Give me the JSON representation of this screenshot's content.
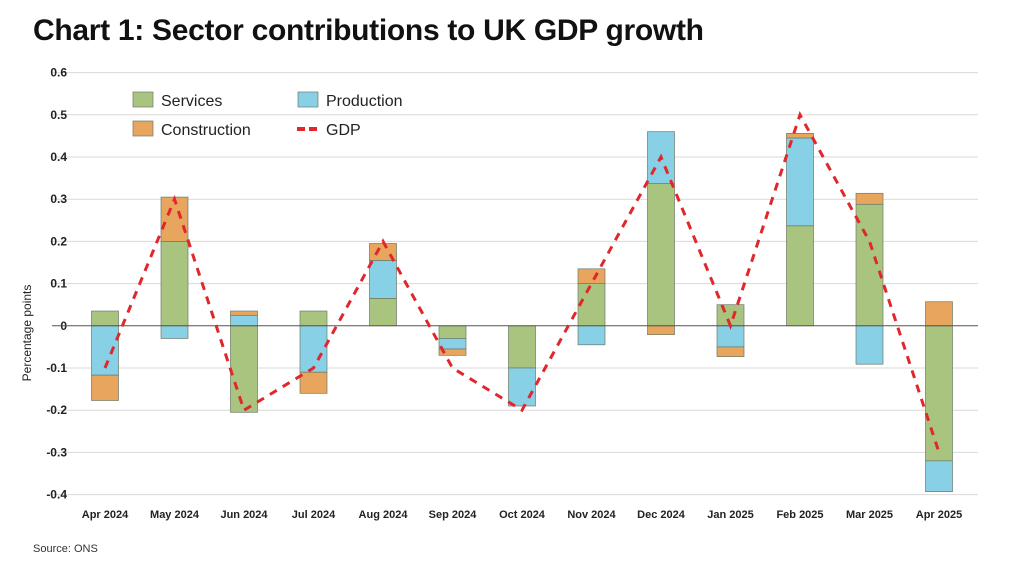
{
  "chart_data": {
    "type": "bar",
    "stacked": true,
    "title": "Chart 1: Sector contributions to UK GDP growth",
    "xlabel": "",
    "ylabel": "Percentage points",
    "ylim": [
      -0.4,
      0.6
    ],
    "yticks": [
      "0.6",
      "0.5",
      "0.4",
      "0.3",
      "0.2",
      "0.1",
      "0",
      "-0.1",
      "-0.2",
      "-0.3",
      "-0.4"
    ],
    "grid": true,
    "legend_position": "top-left",
    "categories": [
      "Apr 2024",
      "May 2024",
      "Jun 2024",
      "Jul 2024",
      "Aug 2024",
      "Sep 2024",
      "Oct 2024",
      "Nov 2024",
      "Dec 2024",
      "Jan 2025",
      "Feb 2025",
      "Mar 2025",
      "Apr 2025"
    ],
    "series": [
      {
        "name": "Services",
        "kind": "bar",
        "color": "#a9c47f",
        "values": [
          0.035,
          0.2,
          -0.205,
          0.035,
          0.065,
          -0.03,
          -0.1,
          0.1,
          0.337,
          0.05,
          0.237,
          0.288,
          -0.32
        ]
      },
      {
        "name": "Production",
        "kind": "bar",
        "color": "#87d0e6",
        "values": [
          -0.117,
          -0.03,
          0.025,
          -0.11,
          0.09,
          -0.025,
          -0.09,
          -0.045,
          0.123,
          -0.05,
          0.208,
          -0.091,
          -0.073
        ]
      },
      {
        "name": "Construction",
        "kind": "bar",
        "color": "#e8a55e",
        "values": [
          -0.06,
          0.105,
          0.01,
          -0.05,
          0.04,
          -0.015,
          0.0,
          0.035,
          -0.021,
          -0.023,
          0.011,
          0.026,
          0.057
        ]
      },
      {
        "name": "GDP",
        "kind": "line",
        "style": "dashed",
        "color": "#e0282c",
        "values": [
          -0.1,
          0.3,
          -0.2,
          -0.1,
          0.2,
          -0.1,
          -0.2,
          0.1,
          0.4,
          0.0,
          0.5,
          0.2,
          -0.3
        ]
      }
    ],
    "source": "Source: ONS"
  }
}
